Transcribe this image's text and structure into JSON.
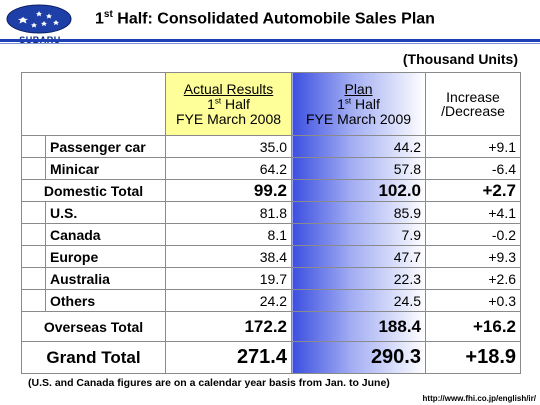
{
  "brand": {
    "name": "SUBARU"
  },
  "title": {
    "prefix": "1",
    "sup": "st",
    "rest": " Half: Consolidated Automobile Sales Plan"
  },
  "units": "(Thousand Units)",
  "headers": {
    "actual": {
      "line1": "Actual Results",
      "ord": "1",
      "ord_sup": "st",
      "ord_rest": " Half",
      "line3": "FYE March 2008"
    },
    "plan": {
      "line1": "Plan",
      "ord": "1",
      "ord_sup": "st",
      "ord_rest": " Half",
      "line3": "FYE March 2009"
    },
    "increase": {
      "line1": "Increase",
      "line2": "/Decrease"
    }
  },
  "rows": {
    "passenger": {
      "label": "Passenger car",
      "actual": "35.0",
      "plan": "44.2",
      "change": "+9.1"
    },
    "minicar": {
      "label": "Minicar",
      "actual": "64.2",
      "plan": "57.8",
      "change": "-6.4"
    },
    "domestic_total": {
      "label": "Domestic Total",
      "actual": "99.2",
      "plan": "102.0",
      "change": "+2.7"
    },
    "us": {
      "label": "U.S.",
      "actual": "81.8",
      "plan": "85.9",
      "change": "+4.1"
    },
    "canada": {
      "label": "Canada",
      "actual": "8.1",
      "plan": "7.9",
      "change": "-0.2"
    },
    "europe": {
      "label": "Europe",
      "actual": "38.4",
      "plan": "47.7",
      "change": "+9.3"
    },
    "australia": {
      "label": "Australia",
      "actual": "19.7",
      "plan": "22.3",
      "change": "+2.6"
    },
    "others": {
      "label": "Others",
      "actual": "24.2",
      "plan": "24.5",
      "change": "+0.3"
    },
    "overseas_total": {
      "label": "Overseas Total",
      "actual": "172.2",
      "plan": "188.4",
      "change": "+16.2"
    },
    "grand_total": {
      "label": "Grand Total",
      "actual": "271.4",
      "plan": "290.3",
      "change": "+18.9"
    }
  },
  "footnote": "(U.S. and Canada figures are on a calendar year basis from Jan. to June)",
  "url": "http://www.fhi.co.jp/english/ir/",
  "colors": {
    "accent": "#1f3fb5",
    "plan_gradient_start": "#3c4fe0",
    "actual_header": "#ffff99",
    "negative": "#e00000"
  }
}
